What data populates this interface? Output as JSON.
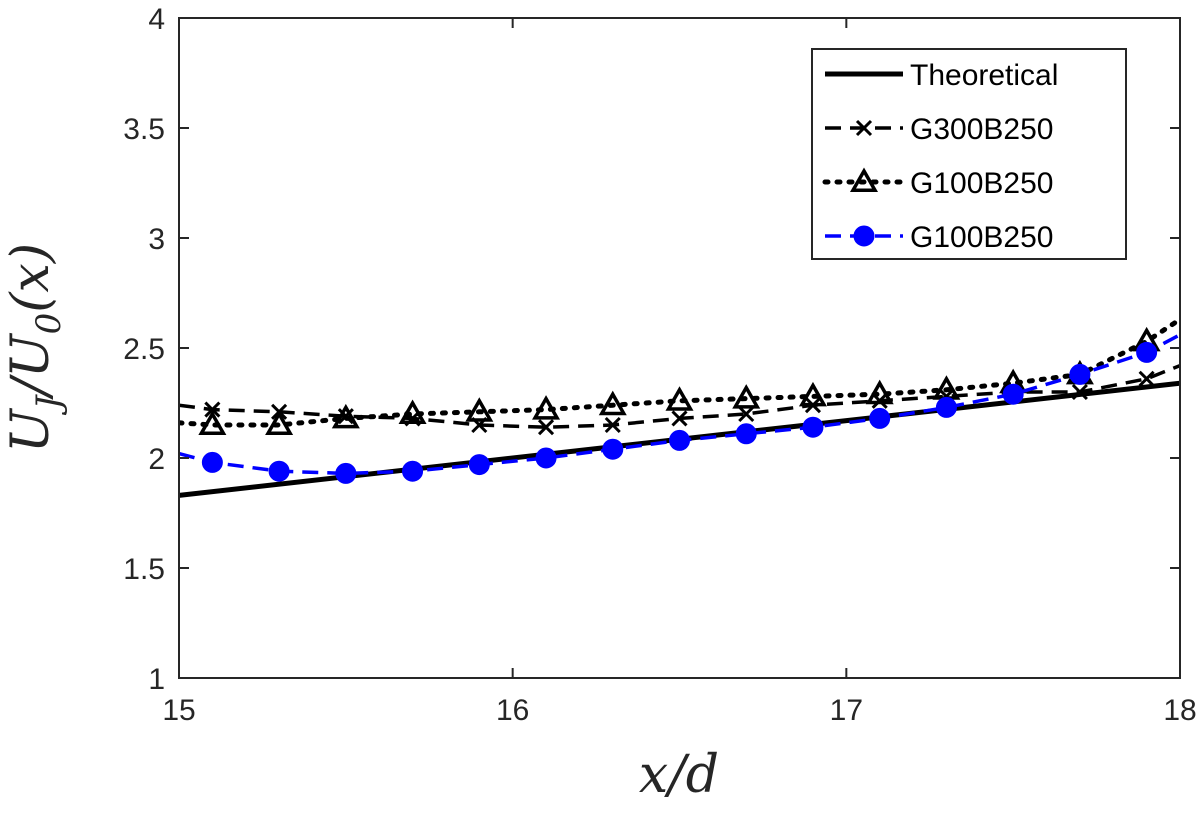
{
  "chart_data": {
    "type": "line",
    "title": "",
    "xlabel": "x/d",
    "ylabel": "U_J/U_0(x)",
    "xlim": [
      15,
      18
    ],
    "ylim": [
      1,
      4
    ],
    "x_ticks": [
      15,
      16,
      17,
      18
    ],
    "y_ticks": [
      1,
      1.5,
      2,
      2.5,
      3,
      3.5,
      4
    ],
    "x_tick_labels": [
      "15",
      "16",
      "17",
      "18"
    ],
    "y_tick_labels": [
      "1",
      "1.5",
      "2",
      "2.5",
      "3",
      "3.5",
      "4"
    ],
    "grid": false,
    "legend_position": "top-right",
    "series": [
      {
        "name": "Theoretical",
        "style": "solid",
        "marker": "none",
        "color": "#000000",
        "x": [
          15.0,
          18.0
        ],
        "y": [
          1.83,
          2.34
        ]
      },
      {
        "name": "G300B250",
        "style": "dashed",
        "marker": "x",
        "color": "#000000",
        "x": [
          15.0,
          15.1,
          15.3,
          15.5,
          15.7,
          15.9,
          16.1,
          16.3,
          16.5,
          16.7,
          16.9,
          17.1,
          17.3,
          17.5,
          17.7,
          17.9,
          18.0
        ],
        "y": [
          2.24,
          2.22,
          2.21,
          2.19,
          2.18,
          2.15,
          2.14,
          2.15,
          2.18,
          2.2,
          2.24,
          2.26,
          2.28,
          2.3,
          2.3,
          2.36,
          2.42
        ]
      },
      {
        "name": "G100B250",
        "style": "dotted",
        "marker": "triangle",
        "color": "#000000",
        "x": [
          15.0,
          15.1,
          15.3,
          15.5,
          15.7,
          15.9,
          16.1,
          16.3,
          16.5,
          16.7,
          16.9,
          17.1,
          17.3,
          17.5,
          17.7,
          17.9,
          18.0
        ],
        "y": [
          2.16,
          2.15,
          2.15,
          2.18,
          2.2,
          2.21,
          2.22,
          2.24,
          2.26,
          2.27,
          2.28,
          2.29,
          2.31,
          2.34,
          2.38,
          2.53,
          2.63
        ]
      },
      {
        "name": "G100B250",
        "style": "dashed",
        "marker": "circle",
        "color": "#0000ff",
        "x": [
          15.0,
          15.1,
          15.3,
          15.5,
          15.7,
          15.9,
          16.1,
          16.3,
          16.5,
          16.7,
          16.9,
          17.1,
          17.3,
          17.5,
          17.7,
          17.9,
          18.0
        ],
        "y": [
          2.02,
          1.98,
          1.94,
          1.93,
          1.94,
          1.97,
          2.0,
          2.04,
          2.08,
          2.11,
          2.14,
          2.18,
          2.23,
          2.29,
          2.38,
          2.48,
          2.56
        ]
      }
    ]
  }
}
